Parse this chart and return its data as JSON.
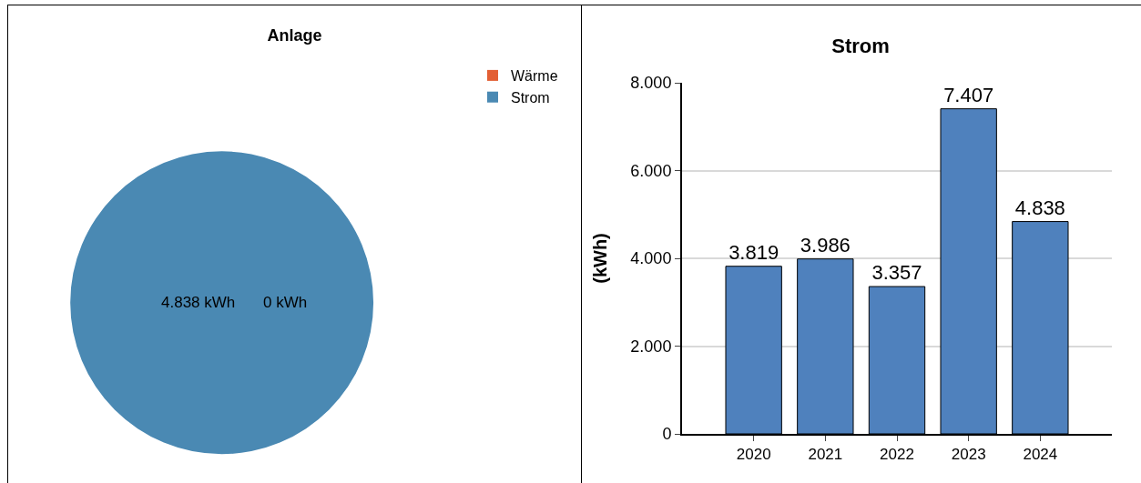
{
  "chart_data": [
    {
      "type": "pie",
      "title": "Anlage",
      "categories": [
        "Wärme",
        "Strom"
      ],
      "values": [
        0,
        4838
      ],
      "colors": [
        "#e35f34",
        "#4a89b3"
      ],
      "value_labels": [
        "0 kWh",
        "4.838 kWh"
      ],
      "legend": "top right"
    },
    {
      "type": "bar",
      "title": "Strom",
      "ylabel": "(kWh)",
      "categories": [
        "2020",
        "2021",
        "2022",
        "2023",
        "2024"
      ],
      "values": [
        3819,
        3986,
        3357,
        7407,
        4838
      ],
      "color": "#4f81bd",
      "value_labels": [
        "3.819",
        "3.986",
        "3.357",
        "7.407",
        "4.838"
      ],
      "ylim": [
        0,
        8000
      ],
      "yticks": [
        0,
        {
          "value": 2000,
          "label": "2.000"
        },
        {
          "value": 4000,
          "label": "4.000"
        },
        {
          "value": 6000,
          "label": "6.000"
        },
        {
          "value": 8000,
          "label": "8.000"
        }
      ],
      "grid": "y",
      "legend": false
    }
  ]
}
